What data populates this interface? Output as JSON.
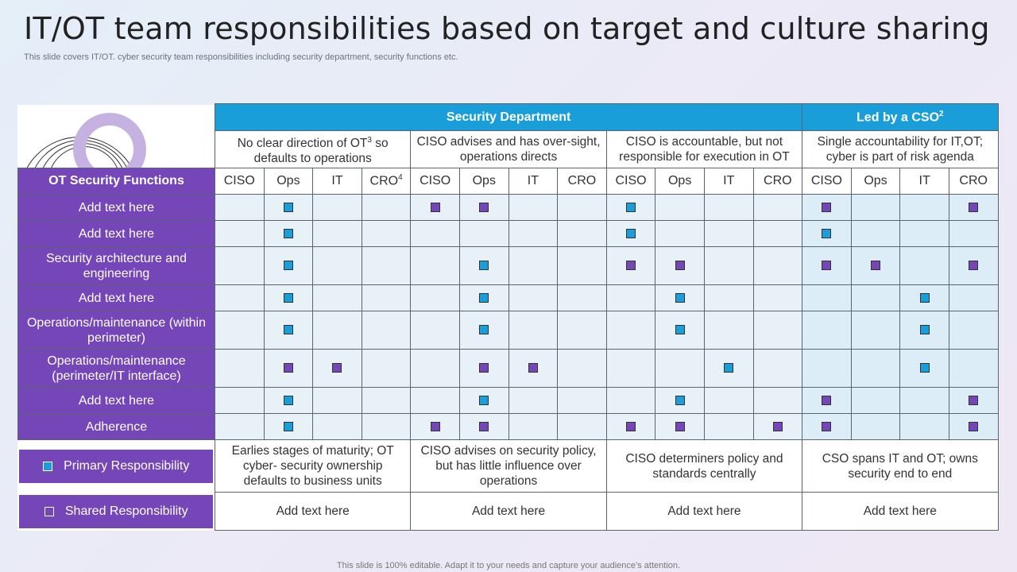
{
  "title": "IT/OT team responsibilities based on target and culture sharing",
  "subtitle": "This slide covers IT/OT. cyber security team responsibilities including security department, security functions etc.",
  "footer": "This slide is 100% editable. Adapt it to your needs and capture your audience’s attention.",
  "header": {
    "security_department": "Security Department",
    "led_by": "Led by a CSO",
    "led_by_sup": "2"
  },
  "scenarios": [
    {
      "pre": "No clear direction of OT",
      "sup": "3",
      "post": " so defaults to operations"
    },
    {
      "pre": "CISO advises and has over-sight, operations directs",
      "sup": "",
      "post": ""
    },
    {
      "pre": "CISO is accountable, but not responsible for execution in OT",
      "sup": "",
      "post": ""
    },
    {
      "pre": "Single accountability for IT,OT; cyber is part of risk agenda",
      "sup": "",
      "post": ""
    }
  ],
  "functions_header": "OT Security Functions",
  "sub_columns": [
    {
      "label": "CISO",
      "sup": ""
    },
    {
      "label": "Ops",
      "sup": ""
    },
    {
      "label": "IT",
      "sup": ""
    },
    {
      "label": "CRO",
      "sup": "4"
    },
    {
      "label": "CISO",
      "sup": ""
    },
    {
      "label": "Ops",
      "sup": ""
    },
    {
      "label": "IT",
      "sup": ""
    },
    {
      "label": "CRO",
      "sup": ""
    },
    {
      "label": "CISO",
      "sup": ""
    },
    {
      "label": "Ops",
      "sup": ""
    },
    {
      "label": "IT",
      "sup": ""
    },
    {
      "label": "CRO",
      "sup": ""
    },
    {
      "label": "CISO",
      "sup": ""
    },
    {
      "label": "Ops",
      "sup": ""
    },
    {
      "label": "IT",
      "sup": ""
    },
    {
      "label": "CRO",
      "sup": ""
    }
  ],
  "rows": [
    {
      "label": "Add text here",
      "marks": [
        "",
        "P",
        "",
        "",
        "S",
        "S",
        "",
        "",
        "P",
        "",
        "",
        "",
        "S",
        "",
        "",
        "S"
      ]
    },
    {
      "label": "Add text here",
      "marks": [
        "",
        "P",
        "",
        "",
        "",
        "",
        "",
        "",
        "P",
        "",
        "",
        "",
        "P",
        "",
        "",
        ""
      ]
    },
    {
      "label": "Security architecture and engineering",
      "marks": [
        "",
        "P",
        "",
        "",
        "",
        "P",
        "",
        "",
        "S",
        "S",
        "",
        "",
        "S",
        "S",
        "",
        "S"
      ]
    },
    {
      "label": "Add text here",
      "marks": [
        "",
        "P",
        "",
        "",
        "",
        "P",
        "",
        "",
        "",
        "P",
        "",
        "",
        "",
        "",
        "P",
        ""
      ]
    },
    {
      "label": "Operations/maintenance (within perimeter)",
      "marks": [
        "",
        "P",
        "",
        "",
        "",
        "P",
        "",
        "",
        "",
        "P",
        "",
        "",
        "",
        "",
        "P",
        ""
      ]
    },
    {
      "label": "Operations/maintenance (perimeter/IT  interface)",
      "marks": [
        "",
        "S",
        "S",
        "",
        "",
        "S",
        "S",
        "",
        "",
        "",
        "P",
        "",
        "",
        "",
        "P",
        ""
      ]
    },
    {
      "label": "Add text here",
      "marks": [
        "",
        "P",
        "",
        "",
        "",
        "P",
        "",
        "",
        "",
        "P",
        "",
        "",
        "S",
        "",
        "",
        "S"
      ]
    },
    {
      "label": "Adherence",
      "marks": [
        "",
        "P",
        "",
        "",
        "S",
        "S",
        "",
        "",
        "S",
        "S",
        "",
        "S",
        "S",
        "",
        "",
        "S"
      ]
    }
  ],
  "legend": {
    "primary": "Primary Responsibility",
    "shared": "Shared Responsibility"
  },
  "outcomes": [
    "Earlies stages of maturity;  OT cyber- security ownership defaults to business units",
    "CISO advises on security policy, but has little influence over operations",
    "CISO determiners policy and standards centrally",
    "CSO spans IT and OT; owns security end to end"
  ],
  "outcome_notes": [
    "Add text here",
    "Add text here",
    "Add text here",
    "Add text here"
  ],
  "colors": {
    "primary": "#1a9ed9",
    "shared": "#7446b8",
    "header_blue": "#1a9ed9",
    "purple": "#7446b8"
  }
}
